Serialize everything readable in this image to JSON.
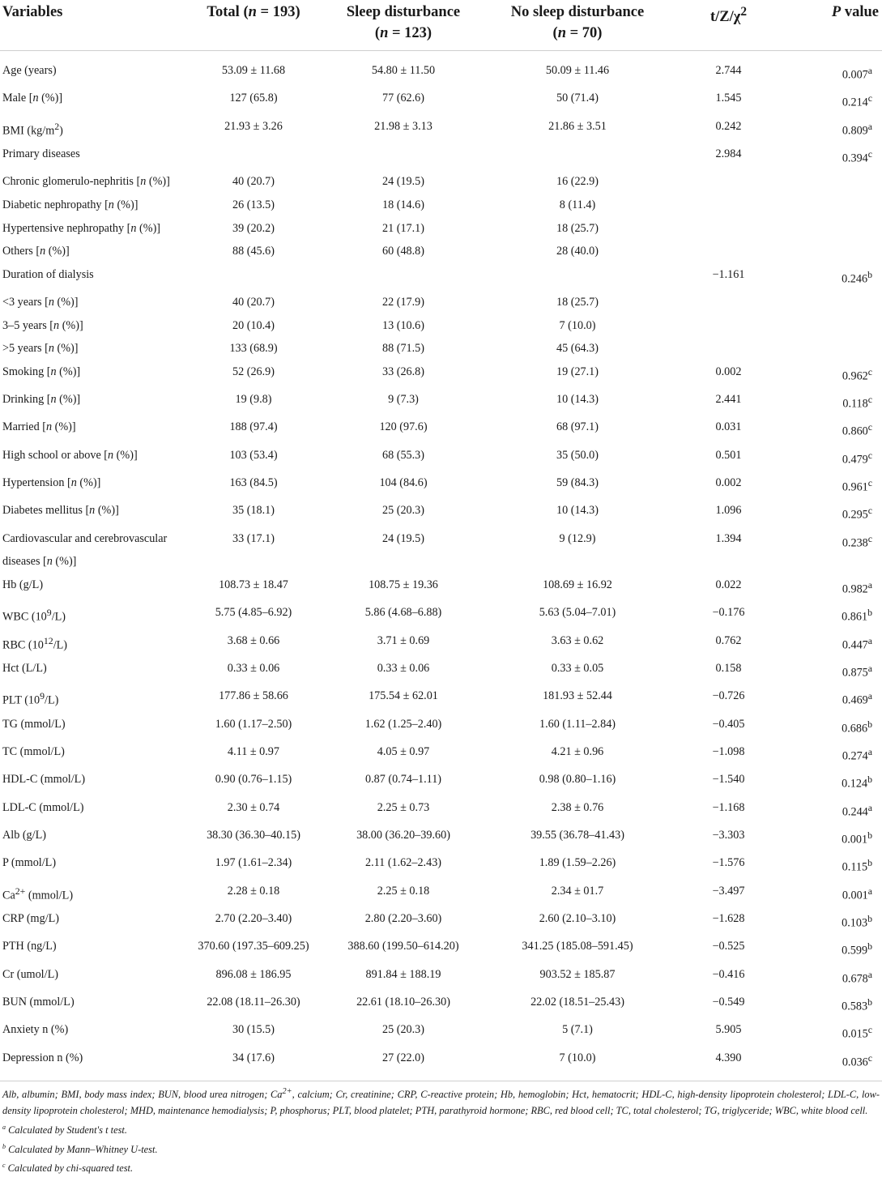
{
  "table": {
    "headers": [
      {
        "html": "Variables"
      },
      {
        "html": "Total (<i>n</i> = 193)"
      },
      {
        "html": "Sleep disturbance<br>(<i>n</i> = 123)"
      },
      {
        "html": "No sleep disturbance<br>(<i>n</i> = 70)"
      },
      {
        "html": "t/Z/χ<sup>2</sup>"
      },
      {
        "html": "<i>P</i> value"
      }
    ],
    "rows": [
      [
        "Age (years)",
        "53.09 ± 11.68",
        "54.80 ± 11.50",
        "50.09 ± 11.46",
        "2.744",
        "0.007<sup>a</sup>"
      ],
      [
        "Male [<i>n</i> (%)]",
        "127 (65.8)",
        "77 (62.6)",
        "50 (71.4)",
        "1.545",
        "0.214<sup>c</sup>"
      ],
      [
        "BMI (kg/m<sup>2</sup>)",
        "21.93 ± 3.26",
        "21.98 ± 3.13",
        "21.86 ± 3.51",
        "0.242",
        "0.809<sup>a</sup>"
      ],
      [
        "Primary diseases",
        "",
        "",
        "",
        "2.984",
        "0.394<sup>c</sup>"
      ],
      [
        "Chronic glomerulo-nephritis [<i>n</i> (%)]",
        "40 (20.7)",
        "24 (19.5)",
        "16 (22.9)",
        "",
        ""
      ],
      [
        "Diabetic nephropathy [<i>n</i> (%)]",
        "26 (13.5)",
        "18 (14.6)",
        "8 (11.4)",
        "",
        ""
      ],
      [
        "Hypertensive nephropathy [<i>n</i> (%)]",
        "39 (20.2)",
        "21 (17.1)",
        "18 (25.7)",
        "",
        ""
      ],
      [
        "Others [<i>n</i> (%)]",
        "88 (45.6)",
        "60 (48.8)",
        "28 (40.0)",
        "",
        ""
      ],
      [
        "Duration of dialysis",
        "",
        "",
        "",
        "−1.161",
        "0.246<sup>b</sup>"
      ],
      [
        "&lt;3 years [<i>n</i> (%)]",
        "40 (20.7)",
        "22 (17.9)",
        "18 (25.7)",
        "",
        ""
      ],
      [
        "3–5 years [<i>n</i> (%)]",
        "20 (10.4)",
        "13 (10.6)",
        "7 (10.0)",
        "",
        ""
      ],
      [
        "&gt;5 years [<i>n</i> (%)]",
        "133 (68.9)",
        "88 (71.5)",
        "45 (64.3)",
        "",
        ""
      ],
      [
        "Smoking [<i>n</i> (%)]",
        "52 (26.9)",
        "33 (26.8)",
        "19 (27.1)",
        "0.002",
        "0.962<sup>c</sup>"
      ],
      [
        "Drinking [<i>n</i> (%)]",
        "19 (9.8)",
        "9 (7.3)",
        "10 (14.3)",
        "2.441",
        "0.118<sup>c</sup>"
      ],
      [
        "Married [<i>n</i> (%)]",
        "188 (97.4)",
        "120 (97.6)",
        "68 (97.1)",
        "0.031",
        "0.860<sup>c</sup>"
      ],
      [
        "High school or above [<i>n</i> (%)]",
        "103 (53.4)",
        "68 (55.3)",
        "35 (50.0)",
        "0.501",
        "0.479<sup>c</sup>"
      ],
      [
        "Hypertension [<i>n</i> (%)]",
        "163 (84.5)",
        "104 (84.6)",
        "59 (84.3)",
        "0.002",
        "0.961<sup>c</sup>"
      ],
      [
        "Diabetes mellitus [<i>n</i> (%)]",
        "35 (18.1)",
        "25 (20.3)",
        "10 (14.3)",
        "1.096",
        "0.295<sup>c</sup>"
      ],
      [
        "Cardiovascular and cerebrovascular diseases [<i>n</i> (%)]",
        "33 (17.1)",
        "24 (19.5)",
        "9 (12.9)",
        "1.394",
        "0.238<sup>c</sup>"
      ],
      [
        "Hb (g/L)",
        "108.73 ± 18.47",
        "108.75 ± 19.36",
        "108.69 ± 16.92",
        "0.022",
        "0.982<sup>a</sup>"
      ],
      [
        "WBC (10<sup>9</sup>/L)",
        "5.75 (4.85–6.92)",
        "5.86 (4.68–6.88)",
        "5.63 (5.04–7.01)",
        "−0.176",
        "0.861<sup>b</sup>"
      ],
      [
        "RBC (10<sup>12</sup>/L)",
        "3.68 ± 0.66",
        "3.71 ± 0.69",
        "3.63 ± 0.62",
        "0.762",
        "0.447<sup>a</sup>"
      ],
      [
        "Hct (L/L)",
        "0.33 ± 0.06",
        "0.33 ± 0.06",
        "0.33 ± 0.05",
        "0.158",
        "0.875<sup>a</sup>"
      ],
      [
        "PLT (10<sup>9</sup>/L)",
        "177.86 ± 58.66",
        "175.54 ± 62.01",
        "181.93 ± 52.44",
        "−0.726",
        "0.469<sup>a</sup>"
      ],
      [
        "TG (mmol/L)",
        "1.60 (1.17–2.50)",
        "1.62 (1.25–2.40)",
        "1.60 (1.11–2.84)",
        "−0.405",
        "0.686<sup>b</sup>"
      ],
      [
        "TC (mmol/L)",
        "4.11 ± 0.97",
        "4.05 ± 0.97",
        "4.21 ± 0.96",
        "−1.098",
        "0.274<sup>a</sup>"
      ],
      [
        "HDL-C (mmol/L)",
        "0.90 (0.76–1.15)",
        "0.87 (0.74–1.11)",
        "0.98 (0.80–1.16)",
        "−1.540",
        "0.124<sup>b</sup>"
      ],
      [
        "LDL-C (mmol/L)",
        "2.30 ± 0.74",
        "2.25 ± 0.73",
        "2.38 ± 0.76",
        "−1.168",
        "0.244<sup>a</sup>"
      ],
      [
        "Alb (g/L)",
        "38.30 (36.30–40.15)",
        "38.00 (36.20–39.60)",
        "39.55 (36.78–41.43)",
        "−3.303",
        "0.001<sup>b</sup>"
      ],
      [
        "P (mmol/L)",
        "1.97 (1.61–2.34)",
        "2.11 (1.62–2.43)",
        "1.89 (1.59–2.26)",
        "−1.576",
        "0.115<sup>b</sup>"
      ],
      [
        "Ca<sup>2+</sup> (mmol/L)",
        "2.28 ± 0.18",
        "2.25 ± 0.18",
        "2.34 ± 01.7",
        "−3.497",
        "0.001<sup>a</sup>"
      ],
      [
        "CRP (mg/L)",
        "2.70 (2.20–3.40)",
        "2.80 (2.20–3.60)",
        "2.60 (2.10–3.10)",
        "−1.628",
        "0.103<sup>b</sup>"
      ],
      [
        "PTH (ng/L)",
        "370.60 (197.35–609.25)",
        "388.60 (199.50–614.20)",
        "341.25 (185.08–591.45)",
        "−0.525",
        "0.599<sup>b</sup>"
      ],
      [
        "Cr (umol/L)",
        "896.08 ± 186.95",
        "891.84 ± 188.19",
        "903.52 ± 185.87",
        "−0.416",
        "0.678<sup>a</sup>"
      ],
      [
        "BUN (mmol/L)",
        "22.08 (18.11–26.30)",
        "22.61 (18.10–26.30)",
        "22.02 (18.51–25.43)",
        "−0.549",
        "0.583<sup>b</sup>"
      ],
      [
        "Anxiety n (%)",
        "30 (15.5)",
        "25 (20.3)",
        "5 (7.1)",
        "5.905",
        "0.015<sup>c</sup>"
      ],
      [
        "Depression n (%)",
        "34 (17.6)",
        "27 (22.0)",
        "7 (10.0)",
        "4.390",
        "0.036<sup>c</sup>"
      ]
    ]
  },
  "footnotes": {
    "abbreviations": "Alb, albumin; BMI, body mass index; BUN, blood urea nitrogen; Ca<sup>2+</sup>, calcium; Cr, creatinine; CRP, C-reactive protein; Hb, hemoglobin; Hct, hematocrit; HDL-C, high-density lipoprotein cholesterol; LDL-C, low-density lipoprotein cholesterol; MHD, maintenance hemodialysis; P, phosphorus; PLT, blood platelet; PTH, parathyroid hormone; RBC, red blood cell; TC, total cholesterol; TG, triglyceride; WBC, white blood cell.",
    "notes": [
      {
        "mark": "a",
        "text": "Calculated by Student's t test."
      },
      {
        "mark": "b",
        "text": "Calculated by Mann–Whitney U-test."
      },
      {
        "mark": "c",
        "text": "Calculated by chi-squared test."
      }
    ]
  }
}
